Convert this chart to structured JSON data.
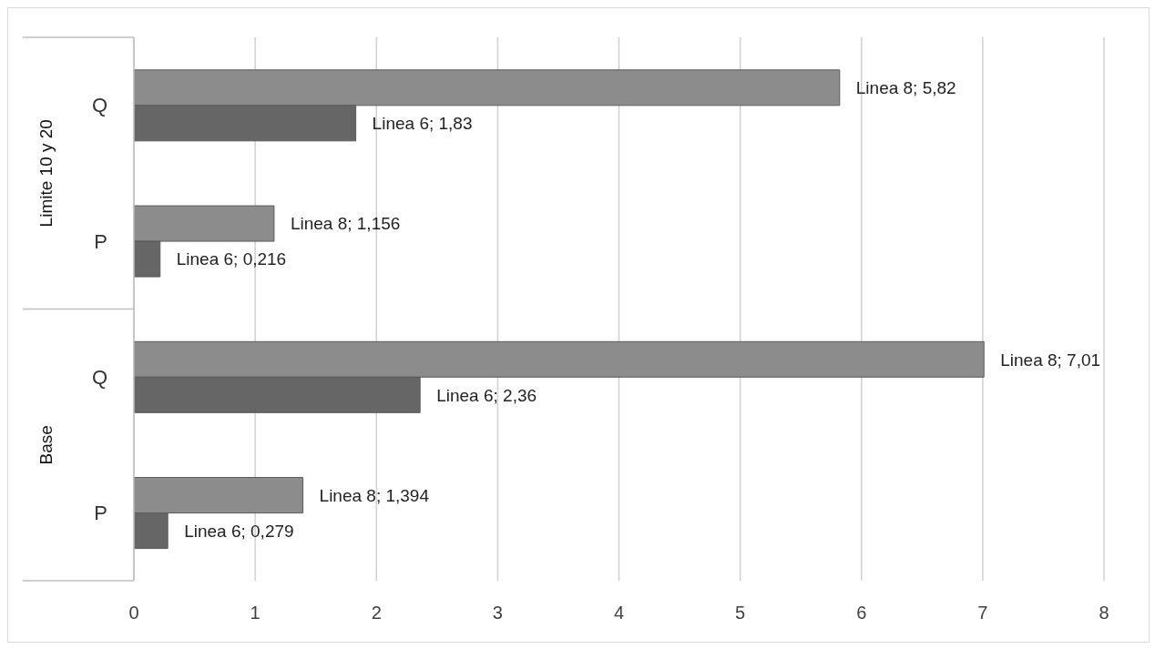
{
  "chart_data": {
    "type": "bar",
    "orientation": "horizontal",
    "categories": [
      "Q",
      "P",
      "Q",
      "P"
    ],
    "series": [
      {
        "color": "#8c8c8c",
        "values": [
          5.82,
          1.156,
          7.01,
          1.394
        ],
        "value_labels": [
          "Linea 8; 5,82",
          "Linea 8; 1,156",
          "Linea 8; 7,01",
          "Linea 8; 1,394"
        ]
      },
      {
        "color": "#666666",
        "values": [
          1.83,
          0.216,
          2.36,
          0.279
        ],
        "value_labels": [
          "Linea 6; 1,83",
          "Linea 6; 0,216",
          "Linea 6; 2,36",
          "Linea 6; 0,279"
        ]
      }
    ],
    "xlim": [
      0,
      8
    ],
    "xticks": [
      0,
      1,
      2,
      3,
      4,
      5,
      6,
      7,
      8
    ],
    "grid": "x",
    "legend": false,
    "annotations": [
      "Limite 10 y 20",
      "Base"
    ]
  }
}
